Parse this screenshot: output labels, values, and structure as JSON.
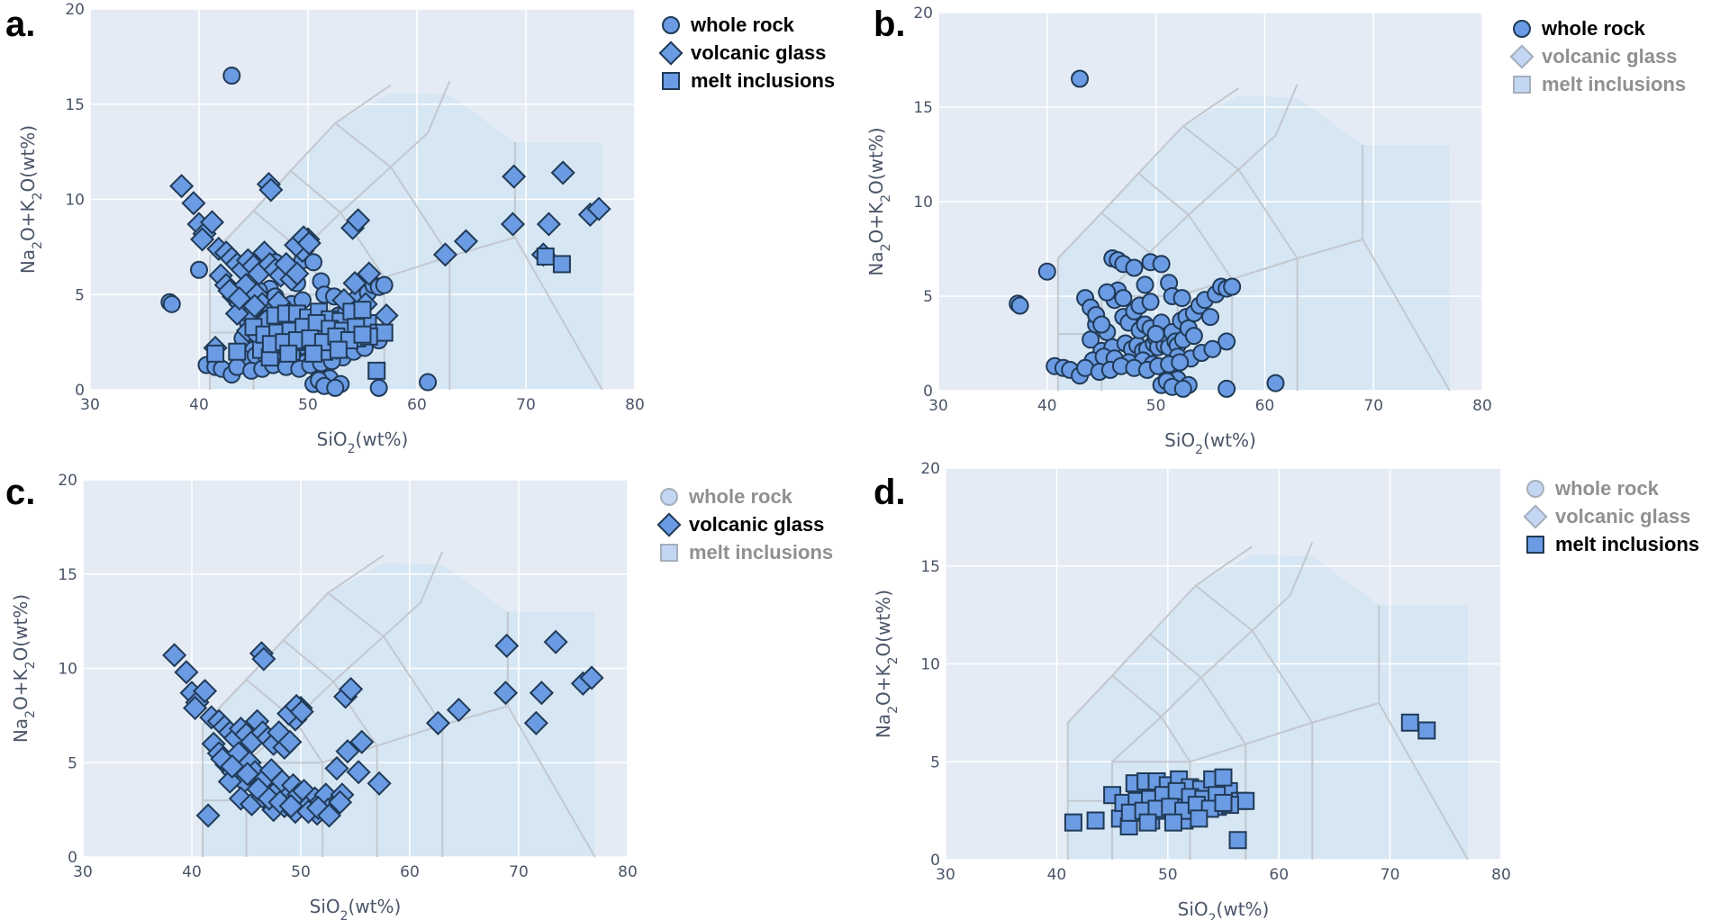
{
  "figure": {
    "style": {
      "plot_bg": "#e5ebf5",
      "shade": "#d6e6f3",
      "grid": "#ffffff",
      "tas_lines": "#c3c8cf",
      "marker_fill": "#6a9be3",
      "marker_stroke": "#203a56",
      "legend_active": "#000000",
      "legend_inactive": "#909090"
    },
    "legend_items": [
      "whole rock",
      "volcanic glass",
      "melt inclusions"
    ],
    "legend_symbols": [
      "circle",
      "diamond",
      "square"
    ]
  },
  "chart_data": [
    {
      "type": "scatter",
      "panel": "a.",
      "xlabel": "SiO2(wt%)",
      "ylabel": "Na2O+K2O(wt%)",
      "xlim": [
        30,
        80
      ],
      "ylim": [
        0,
        20
      ],
      "xticks": [
        "30",
        "40",
        "50",
        "60",
        "70",
        "80"
      ],
      "yticks": [
        "0",
        "5",
        "10",
        "15",
        "20"
      ],
      "grid": true,
      "legend_position": "right",
      "active_series": [
        "whole rock",
        "volcanic glass",
        "melt inclusions"
      ],
      "series": [
        {
          "name": "whole rock",
          "marker": "circle",
          "x": [
            43,
            37.3,
            37.5,
            40,
            40.7,
            41.5,
            42.1,
            43,
            43.5,
            44,
            44.5,
            45,
            45.5,
            46,
            46.2,
            46.5,
            47,
            47.2,
            47.5,
            47.8,
            48,
            48.3,
            48.5,
            48.8,
            49,
            49.2,
            49.5,
            49.8,
            50,
            50.2,
            50.5,
            50.8,
            51,
            51.2,
            51.5,
            51.8,
            52,
            52.3,
            52.5,
            52.8,
            53,
            53.5,
            54,
            54.5,
            55,
            55.5,
            56,
            56.5,
            57,
            46,
            46.5,
            47,
            48,
            49.5,
            50.5,
            51,
            52,
            53,
            50.5,
            51,
            51.5,
            52.5,
            56.5,
            61,
            56.5,
            44,
            44.5,
            45,
            45.5,
            47,
            48.5,
            49,
            49.5,
            50,
            51.2,
            51.5,
            52.4,
            53.5,
            44.2,
            45.2,
            46.2,
            47.5,
            48.8,
            49.7,
            52,
            53.2,
            54.2,
            55.2,
            43.5,
            44.8,
            45.8,
            46.8,
            48,
            49.2,
            50.2,
            51.2,
            52.2
          ],
          "y": [
            16.5,
            4.6,
            4.5,
            6.3,
            1.3,
            1.2,
            1.1,
            0.8,
            4.9,
            2.7,
            3.5,
            2.1,
            3.1,
            2.3,
            4.8,
            5.3,
            3.9,
            2.5,
            3.6,
            2.2,
            4.2,
            2.4,
            3.2,
            2.1,
            3.5,
            2.2,
            3.3,
            2.5,
            2.8,
            2.3,
            3.6,
            2.4,
            2.9,
            2.3,
            3.1,
            2.6,
            2.4,
            3.7,
            2.7,
            3.9,
            3.3,
            4.1,
            4.5,
            4.8,
            3.9,
            5.1,
            5.5,
            5.4,
            5.5,
            7,
            6.9,
            6.7,
            6.5,
            6.8,
            6.7,
            0.6,
            0.6,
            0.3,
            0.3,
            0.5,
            0.2,
            0.1,
            0.1,
            0.4,
            2.6,
            4.4,
            4.0,
            3.5,
            5.2,
            4.9,
            4.5,
            5.6,
            4.7,
            3.0,
            5.7,
            5.0,
            4.9,
            2.9,
            1.6,
            1.8,
            1.7,
            1.5,
            1.6,
            1.4,
            1.8,
            1.7,
            2.0,
            2.2,
            1.2,
            1.0,
            1.1,
            1.3,
            1.2,
            1.1,
            1.3,
            1.4,
            1.5
          ]
        },
        {
          "name": "volcanic glass",
          "marker": "diamond",
          "x": [
            38.4,
            39.5,
            40,
            40.5,
            41.2,
            40.3,
            41.8,
            42.5,
            43,
            43.5,
            44,
            44.5,
            45,
            45.5,
            46,
            46.5,
            47,
            47.5,
            48,
            48.5,
            49,
            49.5,
            50,
            46.4,
            46.6,
            48.9,
            49.6,
            50.1,
            54.1,
            54.6,
            55.6,
            62.6,
            64.5,
            68.9,
            73.4,
            68.8,
            72.1,
            71.6,
            75.9,
            76.7,
            42,
            42.5,
            43.2,
            43.8,
            44.3,
            44.8,
            45.3,
            45.8,
            46.3,
            46.8,
            47.3,
            47.8,
            48.3,
            48.8,
            49.3,
            49.8,
            50.3,
            50.8,
            51.3,
            51.8,
            52.3,
            52.8,
            53.3,
            53.8,
            54.3,
            55.3,
            57.2,
            41.5,
            43.5,
            44.5,
            45.5,
            46.5,
            47.5,
            48.5,
            49.5,
            50.5,
            51.5,
            52.5,
            42.8,
            43.7,
            45.1,
            46.1,
            47.1,
            48.1,
            49.1,
            50.7,
            51.6,
            52.6,
            53.6
          ],
          "y": [
            10.7,
            9.8,
            8.7,
            8.2,
            8.8,
            7.9,
            7.4,
            7.2,
            6.9,
            6.6,
            6.3,
            6.8,
            6.5,
            6.1,
            7.2,
            6.6,
            6.3,
            6.0,
            6.6,
            5.8,
            6.1,
            7.3,
            7.9,
            10.8,
            10.5,
            7.6,
            8.0,
            7.7,
            8.5,
            8.9,
            6.1,
            7.1,
            7.8,
            11.2,
            11.4,
            8.7,
            8.7,
            7.1,
            9.2,
            9.5,
            6.0,
            5.5,
            4.9,
            4.5,
            5.5,
            4.0,
            5.0,
            4.5,
            3.8,
            4.2,
            4.6,
            3.5,
            4.0,
            3.2,
            3.8,
            3.3,
            3.5,
            2.8,
            3.1,
            2.9,
            3.3,
            2.6,
            4.7,
            3.3,
            5.6,
            4.5,
            3.9,
            2.2,
            4.0,
            3.1,
            2.8,
            3.2,
            2.5,
            2.7,
            2.4,
            2.6,
            2.3,
            2.5,
            5.2,
            4.8,
            4.4,
            3.6,
            3.1,
            2.9,
            2.7,
            2.4,
            2.6,
            2.2,
            2.9
          ]
        },
        {
          "name": "melt inclusions",
          "marker": "square",
          "x": [
            41.5,
            43.5,
            45,
            45.7,
            46.5,
            47.5,
            48.5,
            49.5,
            50.5,
            51.5,
            52.5,
            53.5,
            54.5,
            55.5,
            56.5,
            56.3,
            57,
            71.8,
            73.3,
            47,
            48,
            49,
            50,
            51,
            52,
            53,
            54,
            55,
            46,
            47.2,
            48.4,
            49.6,
            50.8,
            52,
            53.2,
            54.4,
            55.6,
            46.6,
            47.8,
            49,
            50.2,
            51.4,
            52.6,
            53.8,
            55,
            48.2,
            50.5,
            52.8
          ],
          "y": [
            1.9,
            2.0,
            3.3,
            2.1,
            1.7,
            2.4,
            2.0,
            2.5,
            2.7,
            2.0,
            2.5,
            3.0,
            2.7,
            3.5,
            3.0,
            1.0,
            3.0,
            7.0,
            6.6,
            3.9,
            4.0,
            4.0,
            3.8,
            4.1,
            3.7,
            3.6,
            4.1,
            4.2,
            2.9,
            3.0,
            3.1,
            3.3,
            3.5,
            3.2,
            3.1,
            3.3,
            2.8,
            2.4,
            2.5,
            2.6,
            2.7,
            2.5,
            2.8,
            2.6,
            2.9,
            1.9,
            1.9,
            2.1
          ]
        }
      ]
    },
    {
      "type": "scatter",
      "panel": "b.",
      "xlabel": "SiO2(wt%)",
      "ylabel": "Na2O+K2O(wt%)",
      "xlim": [
        30,
        80
      ],
      "ylim": [
        0,
        20
      ],
      "xticks": [
        "30",
        "40",
        "50",
        "60",
        "70",
        "80"
      ],
      "yticks": [
        "0",
        "5",
        "10",
        "15",
        "20"
      ],
      "grid": true,
      "legend_position": "right",
      "active_series": [
        "whole rock"
      ]
    },
    {
      "type": "scatter",
      "panel": "c.",
      "xlabel": "SiO2(wt%)",
      "ylabel": "Na2O+K2O(wt%)",
      "xlim": [
        30,
        80
      ],
      "ylim": [
        0,
        20
      ],
      "xticks": [
        "30",
        "40",
        "50",
        "60",
        "70",
        "80"
      ],
      "yticks": [
        "0",
        "5",
        "10",
        "15",
        "20"
      ],
      "grid": true,
      "legend_position": "right",
      "active_series": [
        "volcanic glass"
      ]
    },
    {
      "type": "scatter",
      "panel": "d.",
      "xlabel": "SiO2(wt%)",
      "ylabel": "Na2O+K2O(wt%)",
      "xlim": [
        30,
        80
      ],
      "ylim": [
        0,
        20
      ],
      "xticks": [
        "30",
        "40",
        "50",
        "60",
        "70",
        "80"
      ],
      "yticks": [
        "0",
        "5",
        "10",
        "15",
        "20"
      ],
      "grid": true,
      "legend_position": "right",
      "active_series": [
        "melt inclusions"
      ]
    }
  ]
}
